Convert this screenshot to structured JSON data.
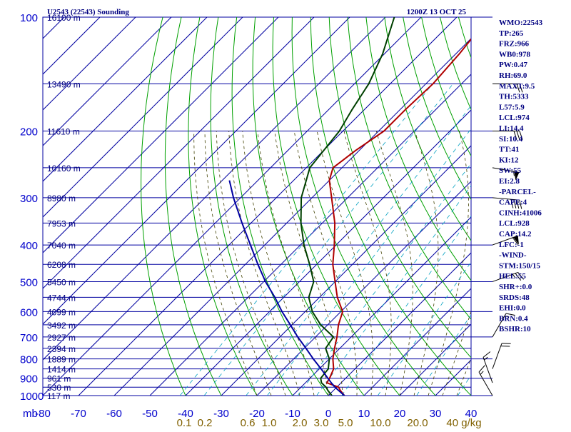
{
  "header": {
    "station_title": "U2543 (22543) Sounding",
    "datetime": "1200Z 13 OCT 25"
  },
  "chart_data": {
    "type": "skew-t",
    "x_label": "mb",
    "pressure_levels": [
      100,
      200,
      300,
      400,
      500,
      600,
      700,
      800,
      900,
      1000
    ],
    "temperature_ticks": [
      -80,
      -70,
      -60,
      -50,
      -40,
      -30,
      -20,
      -10,
      0,
      10,
      20,
      30,
      40
    ],
    "temperature_tick_labels": [
      "-80",
      "-70",
      "-60",
      "-50",
      "-40",
      "-30",
      "-20",
      "-10",
      "0",
      "10",
      "20",
      "30",
      "40"
    ],
    "mixing_ratio_labels": [
      "0.1",
      "0.2",
      "0.6",
      "1.0",
      "2.0",
      "3.0",
      "5.0",
      "10.0",
      "20.0",
      "40 g/kg"
    ],
    "heights": [
      {
        "p": 100,
        "label": "16100 m"
      },
      {
        "p": 150,
        "label": "13490 m"
      },
      {
        "p": 200,
        "label": "11610 m"
      },
      {
        "p": 250,
        "label": "10160 m"
      },
      {
        "p": 300,
        "label": "8980 m"
      },
      {
        "p": 350,
        "label": "7953 m"
      },
      {
        "p": 400,
        "label": "7040 m"
      },
      {
        "p": 450,
        "label": "6208 m"
      },
      {
        "p": 500,
        "label": "5450 m"
      },
      {
        "p": 550,
        "label": "4744 m"
      },
      {
        "p": 600,
        "label": "4099 m"
      },
      {
        "p": 650,
        "label": "3492 m"
      },
      {
        "p": 700,
        "label": "2927 m"
      },
      {
        "p": 750,
        "label": "2394 m"
      },
      {
        "p": 800,
        "label": "1889 m"
      },
      {
        "p": 850,
        "label": "1414 m"
      },
      {
        "p": 900,
        "label": "961 m"
      },
      {
        "p": 950,
        "label": "530 m"
      },
      {
        "p": 1000,
        "label": "117 m"
      }
    ],
    "series": [
      {
        "name": "Temperature",
        "color": "#b00000",
        "points": [
          [
            1000,
            4.5
          ],
          [
            970,
            2.0
          ],
          [
            950,
            0.5
          ],
          [
            925,
            -4.0
          ],
          [
            900,
            -4.5
          ],
          [
            850,
            -6.0
          ],
          [
            800,
            -9.0
          ],
          [
            750,
            -11.5
          ],
          [
            700,
            -14.0
          ],
          [
            650,
            -17.0
          ],
          [
            600,
            -19.5
          ],
          [
            550,
            -25.0
          ],
          [
            500,
            -30.0
          ],
          [
            450,
            -35.5
          ],
          [
            400,
            -40.5
          ],
          [
            350,
            -46.5
          ],
          [
            300,
            -54.5
          ],
          [
            270,
            -60.0
          ],
          [
            250,
            -62.5
          ],
          [
            225,
            -61.0
          ],
          [
            200,
            -58.5
          ],
          [
            175,
            -58.5
          ],
          [
            150,
            -58.0
          ],
          [
            125,
            -59.0
          ],
          [
            100,
            -61.0
          ]
        ]
      },
      {
        "name": "Dewpoint",
        "color": "#004000",
        "points": [
          [
            1000,
            1.0
          ],
          [
            970,
            -1.5
          ],
          [
            950,
            -3.0
          ],
          [
            925,
            -5.5
          ],
          [
            900,
            -7.0
          ],
          [
            850,
            -7.5
          ],
          [
            800,
            -10.0
          ],
          [
            750,
            -14.0
          ],
          [
            700,
            -15.0
          ],
          [
            650,
            -22.0
          ],
          [
            600,
            -28.0
          ],
          [
            550,
            -33.0
          ],
          [
            500,
            -36.0
          ],
          [
            450,
            -42.0
          ],
          [
            400,
            -49.0
          ],
          [
            350,
            -56.0
          ],
          [
            300,
            -63.0
          ],
          [
            250,
            -69.0
          ],
          [
            200,
            -71.0
          ],
          [
            175,
            -73.5
          ],
          [
            150,
            -76.0
          ],
          [
            125,
            -80.5
          ],
          [
            100,
            -87.5
          ]
        ]
      },
      {
        "name": "Parcel",
        "color": "#0000a0",
        "points": [
          [
            1000,
            4.5
          ],
          [
            950,
            -0.5
          ],
          [
            928,
            -2.5
          ],
          [
            900,
            -5.0
          ],
          [
            850,
            -9.5
          ],
          [
            800,
            -14.5
          ],
          [
            750,
            -19.5
          ],
          [
            700,
            -25.0
          ],
          [
            650,
            -30.5
          ],
          [
            600,
            -36.5
          ],
          [
            550,
            -42.5
          ],
          [
            500,
            -49.5
          ],
          [
            450,
            -56.5
          ],
          [
            400,
            -64.0
          ],
          [
            350,
            -72.5
          ],
          [
            300,
            -82.0
          ],
          [
            270,
            -88.0
          ]
        ]
      }
    ],
    "winds": [
      {
        "p": 85,
        "dir": 225,
        "spd": 20
      },
      {
        "p": 150,
        "dir": 270,
        "spd": 25
      },
      {
        "p": 200,
        "dir": 270,
        "spd": 30
      },
      {
        "p": 250,
        "dir": 280,
        "spd": 55
      },
      {
        "p": 300,
        "dir": 275,
        "spd": 40
      },
      {
        "p": 400,
        "dir": 250,
        "spd": 60
      },
      {
        "p": 500,
        "dir": 250,
        "spd": 25
      },
      {
        "p": 700,
        "dir": 210,
        "spd": 15
      },
      {
        "p": 850,
        "dir": 200,
        "spd": 20
      },
      {
        "p": 925,
        "dir": 160,
        "spd": 15
      },
      {
        "p": 1000,
        "dir": 150,
        "spd": 15
      }
    ],
    "indices": [
      "WMO:22543",
      "TP:265",
      "FRZ:966",
      "WB0:978",
      "PW:0.47",
      "RH:69.0",
      "MAXT:9.5",
      "TH:5333",
      "L57:5.9",
      "LCL:974",
      "LI:14.4",
      "SI:10.4",
      "TT:41",
      "KI:12",
      "SW:55",
      "EI:2.8",
      "-PARCEL-",
      "CAPE:4",
      "CINH:41006",
      "LCL:928",
      "CAP:14.2",
      "LFC:-1",
      "-WIND-",
      "STM:150/15",
      "HEL:55",
      "SHR+:0.0",
      "SRDS:48",
      "EHI:0.0",
      "BRN:0.4",
      "BSHR:10"
    ],
    "colors": {
      "grid": "#0000a0",
      "dry_adiabat": "#00a000",
      "moist_adiabat": "#404000",
      "mixing_ratio": "#00a0c0"
    }
  }
}
